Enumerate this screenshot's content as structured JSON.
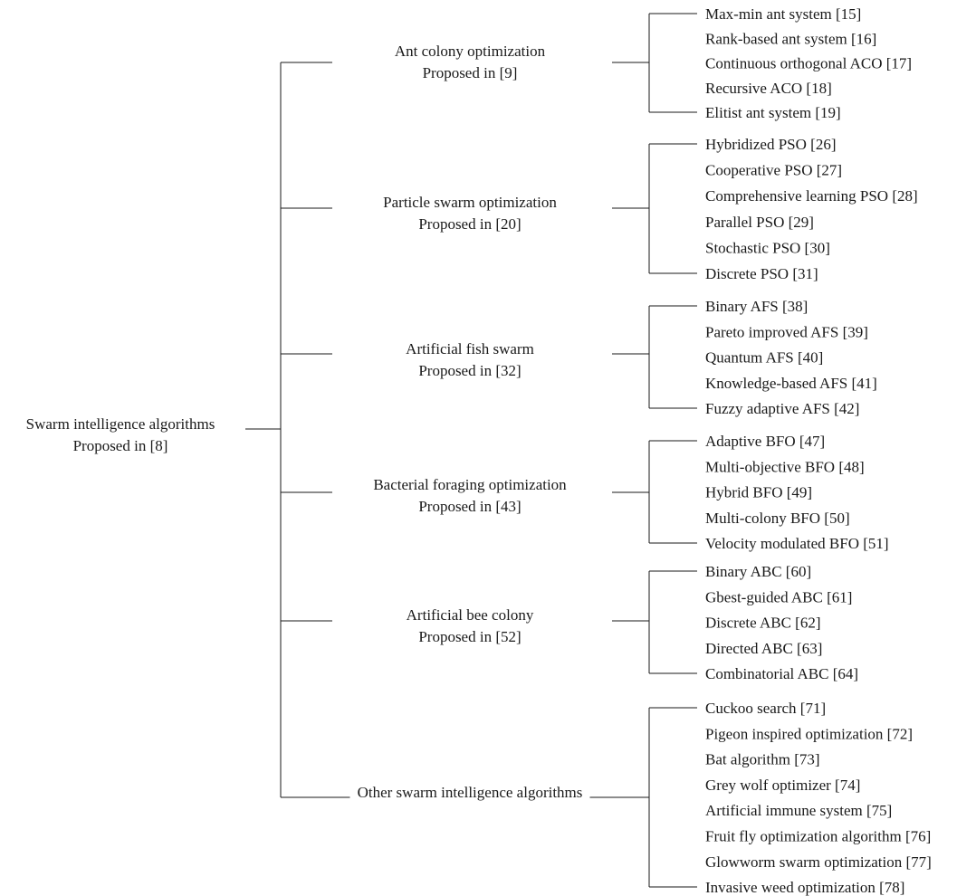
{
  "root": {
    "line1": "Swarm intelligence algorithms",
    "line2": "Proposed in [8]"
  },
  "groups": [
    {
      "line1": "Ant colony optimization",
      "line2": "Proposed in [9]",
      "items": [
        "Max-min ant system [15]",
        "Rank-based ant system [16]",
        "Continuous orthogonal ACO [17]",
        "Recursive ACO [18]",
        "Elitist ant system [19]"
      ]
    },
    {
      "line1": "Particle swarm optimization",
      "line2": "Proposed in [20]",
      "items": [
        "Hybridized PSO [26]",
        "Cooperative PSO [27]",
        "Comprehensive learning PSO [28]",
        "Parallel PSO [29]",
        "Stochastic PSO [30]",
        "Discrete PSO [31]"
      ]
    },
    {
      "line1": "Artificial fish swarm",
      "line2": "Proposed in [32]",
      "items": [
        "Binary AFS [38]",
        "Pareto improved AFS [39]",
        "Quantum AFS [40]",
        "Knowledge-based AFS [41]",
        "Fuzzy adaptive AFS [42]"
      ]
    },
    {
      "line1": "Bacterial foraging optimization",
      "line2": "Proposed in [43]",
      "items": [
        "Adaptive BFO [47]",
        "Multi-objective BFO [48]",
        "Hybrid BFO [49]",
        "Multi-colony BFO [50]",
        "Velocity modulated BFO [51]"
      ]
    },
    {
      "line1": "Artificial bee colony",
      "line2": "Proposed in [52]",
      "items": [
        "Binary ABC [60]",
        "Gbest-guided ABC [61]",
        "Discrete ABC [62]",
        "Directed ABC [63]",
        "Combinatorial ABC [64]"
      ]
    },
    {
      "line1": "Other swarm intelligence algorithms",
      "line2": "",
      "items": [
        "Cuckoo search [71]",
        "Pigeon inspired optimization [72]",
        "Bat algorithm [73]",
        "Grey wolf optimizer [74]",
        "Artificial immune system [75]",
        "Fruit fly optimization algorithm [76]",
        "Glowworm swarm optimization [77]",
        "Invasive weed optimization [78]"
      ]
    }
  ]
}
